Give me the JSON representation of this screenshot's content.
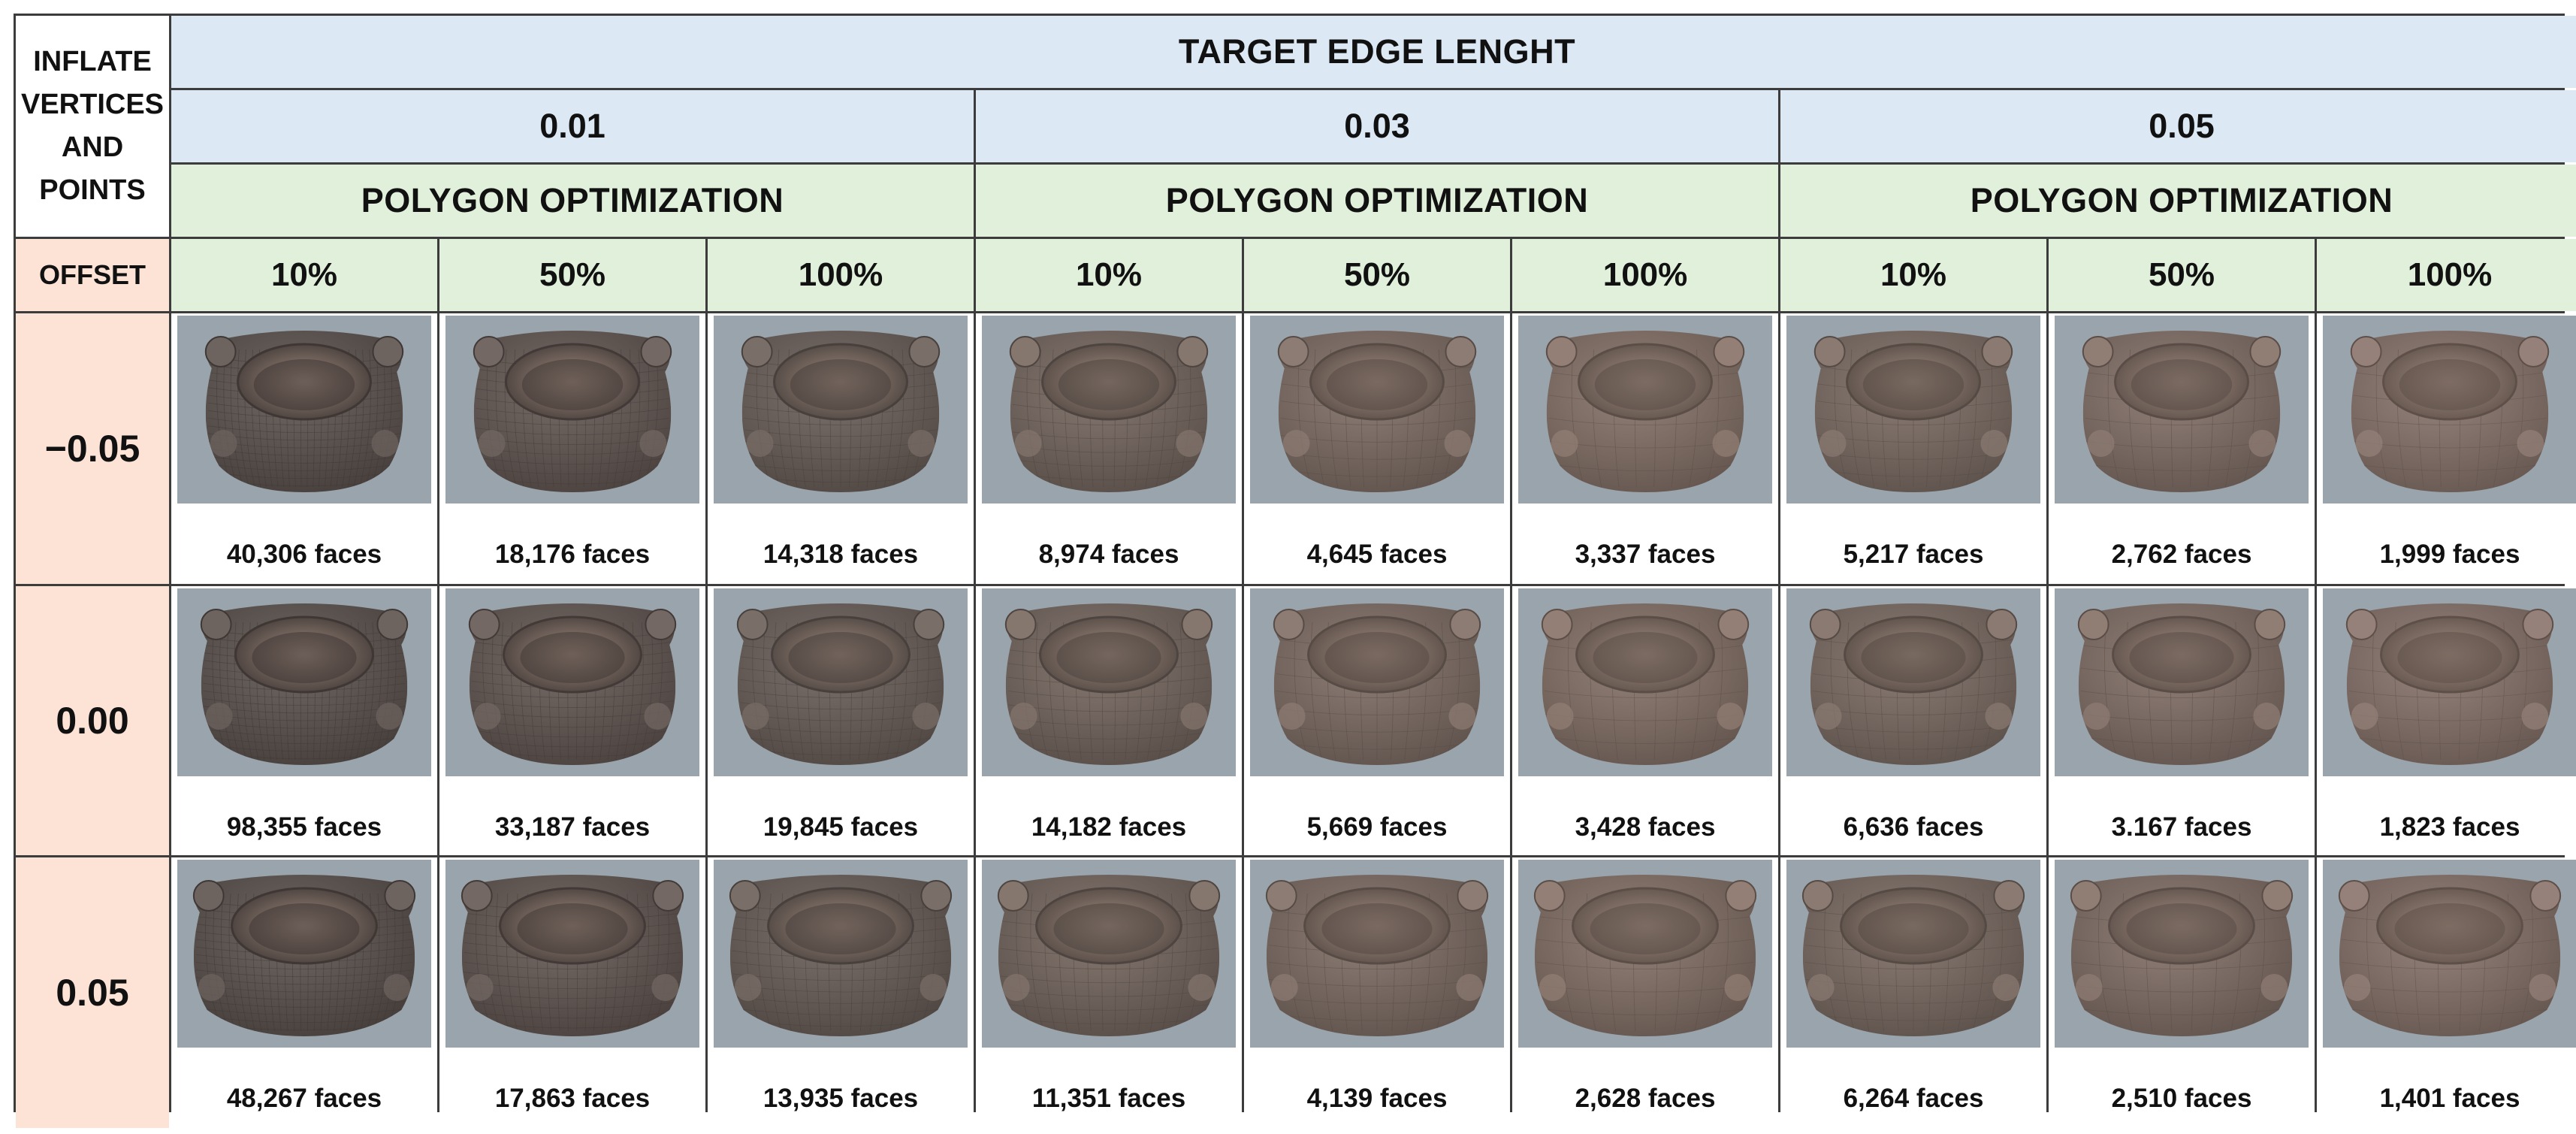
{
  "header": {
    "corner_lines": [
      "INFLATE",
      "VERTICES",
      "AND",
      "POINTS"
    ],
    "title": "TARGET EDGE LENGHT",
    "edge_lengths": [
      "0.01",
      "0.03",
      "0.05"
    ],
    "polygon_label": "POLYGON OPTIMIZATION",
    "offset_label": "OFFSET",
    "percentages": [
      "10%",
      "50%",
      "100%",
      "10%",
      "50%",
      "100%",
      "10%",
      "50%",
      "100%"
    ]
  },
  "colors": {
    "title_fill": "#dce9f5",
    "optimization_fill": "#e0f0da",
    "offset_fill": "#fde3d6",
    "grid_border": "#3c3c3c",
    "thumbnail_background": "#9aa4ac"
  },
  "rows": [
    {
      "offset": "−0.05",
      "faces": [
        "40,306 faces",
        "18,176 faces",
        "14,318 faces",
        "8,974 faces",
        "4,645 faces",
        "3,337 faces",
        "5,217 faces",
        "2,762 faces",
        "1,999 faces"
      ]
    },
    {
      "offset": "0.00",
      "faces": [
        "98,355 faces",
        "33,187 faces",
        "19,845 faces",
        "14,182 faces",
        "5,669 faces",
        "3,428 faces",
        "6,636 faces",
        "3.167 faces",
        "1,823 faces"
      ]
    },
    {
      "offset": "0.05",
      "faces": [
        "48,267 faces",
        "17,863 faces",
        "13,935 faces",
        "11,351 faces",
        "4,139 faces",
        "2,628 faces",
        "6,264 faces",
        "2,510 faces",
        "1,401 faces"
      ]
    }
  ],
  "thumbnail_icon": "stone-mortar-mesh-render"
}
